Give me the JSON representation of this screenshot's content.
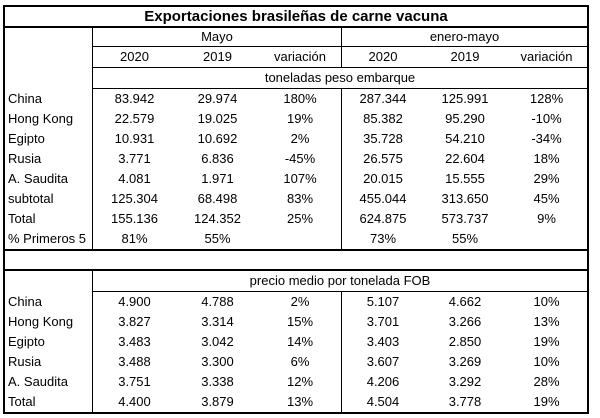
{
  "chart_data": {
    "type": "table",
    "title": "Exportaciones brasileñas de carne vacuna",
    "column_groups": [
      {
        "label": "Mayo",
        "columns": [
          "2020",
          "2019",
          "variación"
        ]
      },
      {
        "label": "enero-mayo",
        "columns": [
          "2020",
          "2019",
          "variación"
        ]
      }
    ],
    "sections": [
      {
        "header": "toneladas peso embarque",
        "rows": [
          {
            "label": "China",
            "values": [
              "83.942",
              "29.974",
              "180%",
              "287.344",
              "125.991",
              "128%"
            ]
          },
          {
            "label": "Hong Kong",
            "values": [
              "22.579",
              "19.025",
              "19%",
              "85.382",
              "95.290",
              "-10%"
            ]
          },
          {
            "label": "Egipto",
            "values": [
              "10.931",
              "10.692",
              "2%",
              "35.728",
              "54.210",
              "-34%"
            ]
          },
          {
            "label": "Rusia",
            "values": [
              "3.771",
              "6.836",
              "-45%",
              "26.575",
              "22.604",
              "18%"
            ]
          },
          {
            "label": "A. Saudita",
            "values": [
              "4.081",
              "1.971",
              "107%",
              "20.015",
              "15.555",
              "29%"
            ]
          },
          {
            "label": "subtotal",
            "values": [
              "125.304",
              "68.498",
              "83%",
              "455.044",
              "313.650",
              "45%"
            ]
          },
          {
            "label": "Total",
            "values": [
              "155.136",
              "124.352",
              "25%",
              "624.875",
              "573.737",
              "9%"
            ]
          },
          {
            "label": "% Primeros 5",
            "values": [
              "81%",
              "55%",
              "",
              "73%",
              "55%",
              ""
            ]
          }
        ]
      },
      {
        "header": "precio medio por tonelada FOB",
        "rows": [
          {
            "label": "China",
            "values": [
              "4.900",
              "4.788",
              "2%",
              "5.107",
              "4.662",
              "10%"
            ]
          },
          {
            "label": "Hong Kong",
            "values": [
              "3.827",
              "3.314",
              "15%",
              "3.701",
              "3.266",
              "13%"
            ]
          },
          {
            "label": "Egipto",
            "values": [
              "3.483",
              "3.042",
              "14%",
              "3.403",
              "2.850",
              "19%"
            ]
          },
          {
            "label": "Rusia",
            "values": [
              "3.488",
              "3.300",
              "6%",
              "3.607",
              "3.269",
              "10%"
            ]
          },
          {
            "label": "A. Saudita",
            "values": [
              "3.751",
              "3.338",
              "12%",
              "4.206",
              "3.292",
              "28%"
            ]
          },
          {
            "label": "Total",
            "values": [
              "4.400",
              "3.879",
              "13%",
              "4.504",
              "3.778",
              "19%"
            ]
          }
        ]
      }
    ],
    "layout": {
      "grid": "off",
      "legend": "none"
    }
  },
  "colors": {
    "border": "#000000",
    "text": "#000000",
    "background": "#ffffff"
  }
}
